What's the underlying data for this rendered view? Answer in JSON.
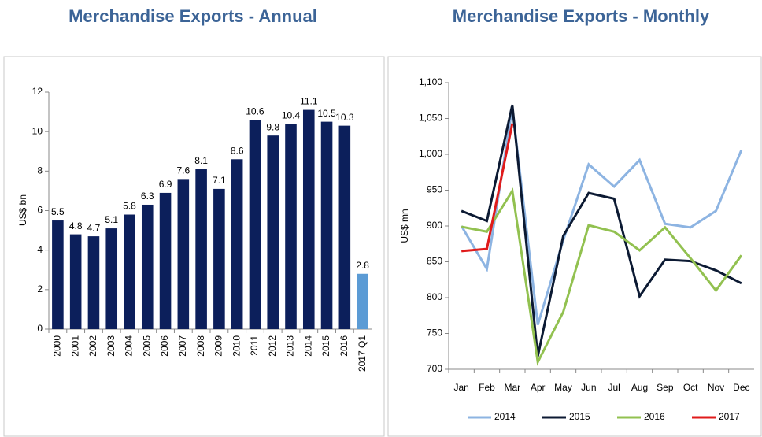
{
  "chart_data": [
    {
      "type": "bar",
      "title": "Merchandise Exports - Annual",
      "y_label": "US$ bn",
      "categories": [
        "2000",
        "2001",
        "2002",
        "2003",
        "2004",
        "2005",
        "2006",
        "2007",
        "2008",
        "2009",
        "2010",
        "2011",
        "2012",
        "2013",
        "2014",
        "2015",
        "2016",
        "2017 Q1"
      ],
      "values": [
        5.5,
        4.8,
        4.7,
        5.1,
        5.8,
        6.3,
        6.9,
        7.6,
        8.1,
        7.1,
        8.6,
        10.6,
        9.8,
        10.4,
        11.1,
        10.5,
        10.3,
        2.8
      ],
      "colors": [
        "#0c1f5b",
        "#0c1f5b",
        "#0c1f5b",
        "#0c1f5b",
        "#0c1f5b",
        "#0c1f5b",
        "#0c1f5b",
        "#0c1f5b",
        "#0c1f5b",
        "#0c1f5b",
        "#0c1f5b",
        "#0c1f5b",
        "#0c1f5b",
        "#0c1f5b",
        "#0c1f5b",
        "#0c1f5b",
        "#0c1f5b",
        "#5b9bd5"
      ],
      "ylim": [
        0,
        12
      ],
      "yticks": [
        0,
        2,
        4,
        6,
        8,
        10,
        12
      ],
      "grid": false
    },
    {
      "type": "line",
      "title": "Merchandise Exports - Monthly",
      "y_label": "US$ mn",
      "categories": [
        "Jan",
        "Feb",
        "Mar",
        "Apr",
        "May",
        "Jun",
        "Jul",
        "Aug",
        "Sep",
        "Oct",
        "Nov",
        "Dec"
      ],
      "series": [
        {
          "name": "2014",
          "color": "#8db4e2",
          "values": [
            900,
            840,
            1065,
            762,
            880,
            986,
            955,
            992,
            903,
            898,
            921,
            1006
          ]
        },
        {
          "name": "2015",
          "color": "#0c1a33",
          "values": [
            921,
            907,
            1069,
            718,
            886,
            946,
            938,
            802,
            853,
            851,
            838,
            820
          ]
        },
        {
          "name": "2016",
          "color": "#92c150",
          "values": [
            899,
            892,
            949,
            710,
            780,
            901,
            892,
            866,
            898,
            855,
            810,
            859
          ]
        },
        {
          "name": "2017",
          "color": "#e01b1b",
          "values": [
            865,
            868,
            1043,
            null,
            null,
            null,
            null,
            null,
            null,
            null,
            null,
            null
          ]
        }
      ],
      "ylim": [
        700,
        1100
      ],
      "yticks": [
        700,
        750,
        800,
        850,
        900,
        950,
        {
          "value": 1000,
          "label": "1,000"
        },
        {
          "value": 1050,
          "label": "1,050"
        },
        {
          "value": 1100,
          "label": "1,100"
        }
      ],
      "grid": false,
      "legend": "bottom"
    }
  ]
}
